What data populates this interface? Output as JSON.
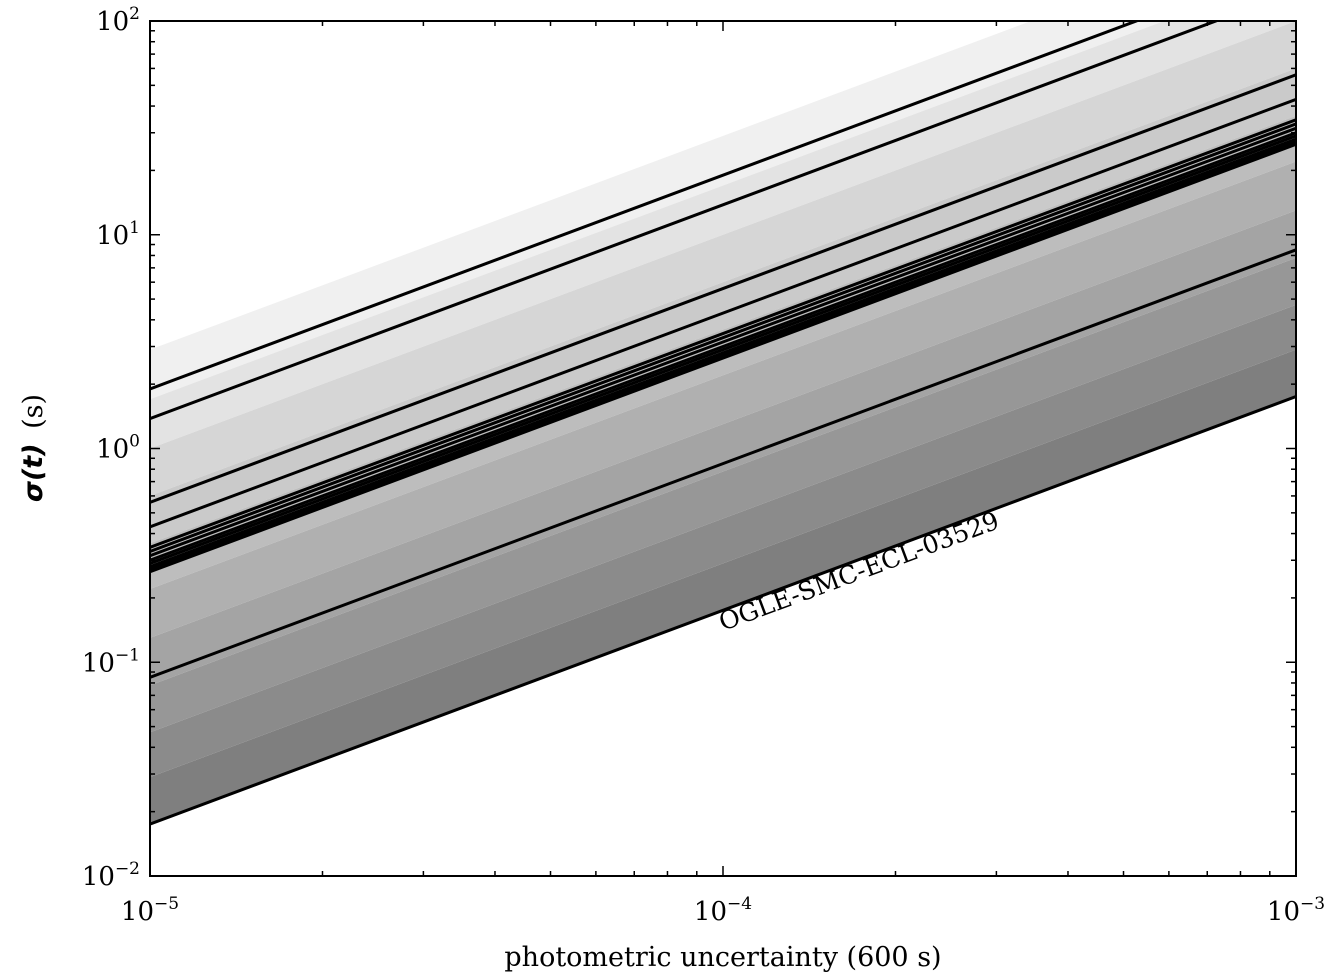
{
  "chart_data": {
    "type": "line",
    "xscale": "log",
    "yscale": "log",
    "xlim": [
      1e-05,
      0.001
    ],
    "ylim": [
      0.01,
      100
    ],
    "xlabel": "photometric uncertainty (600 s)",
    "ylabel_main": "σ(t)",
    "ylabel_unit": "(s)",
    "xticks": [
      {
        "value": 1e-05,
        "base": "10",
        "exp": "−5"
      },
      {
        "value": 0.0001,
        "base": "10",
        "exp": "−4"
      },
      {
        "value": 0.001,
        "base": "10",
        "exp": "−3"
      }
    ],
    "yticks": [
      {
        "value": 0.01,
        "base": "10",
        "exp": "−2"
      },
      {
        "value": 0.1,
        "base": "10",
        "exp": "−1"
      },
      {
        "value": 1,
        "base": "10",
        "exp": "0"
      },
      {
        "value": 10,
        "base": "10",
        "exp": "1"
      },
      {
        "value": 100,
        "base": "10",
        "exp": "2"
      }
    ],
    "bands": [
      {
        "lo_at_1e-5": 1.7,
        "hi_at_1e-5": 2.9,
        "color": "#f0f0f0"
      },
      {
        "lo_at_1e-5": 1.0,
        "hi_at_1e-5": 1.7,
        "color": "#e3e3e3"
      },
      {
        "lo_at_1e-5": 0.6,
        "hi_at_1e-5": 1.0,
        "color": "#d6d6d6"
      },
      {
        "lo_at_1e-5": 0.36,
        "hi_at_1e-5": 0.6,
        "color": "#cacaca"
      },
      {
        "lo_at_1e-5": 0.22,
        "hi_at_1e-5": 0.36,
        "color": "#bdbdbd"
      },
      {
        "lo_at_1e-5": 0.13,
        "hi_at_1e-5": 0.22,
        "color": "#b0b0b0"
      },
      {
        "lo_at_1e-5": 0.078,
        "hi_at_1e-5": 0.13,
        "color": "#a4a4a4"
      },
      {
        "lo_at_1e-5": 0.047,
        "hi_at_1e-5": 0.078,
        "color": "#979797"
      },
      {
        "lo_at_1e-5": 0.029,
        "hi_at_1e-5": 0.047,
        "color": "#8b8b8b"
      },
      {
        "lo_at_1e-5": 0.0175,
        "hi_at_1e-5": 0.029,
        "color": "#7f7f7f"
      }
    ],
    "lines": [
      {
        "x": [
          1e-05,
          0.001
        ],
        "y": [
          1.9,
          190
        ]
      },
      {
        "x": [
          1e-05,
          0.00021,
          0.001
        ],
        "y": [
          1.38,
          29,
          138
        ]
      },
      {
        "x": [
          1e-05,
          0.001
        ],
        "y": [
          0.56,
          56
        ]
      },
      {
        "x": [
          1e-05,
          0.001
        ],
        "y": [
          0.43,
          43
        ]
      },
      {
        "x": [
          1e-05,
          0.001
        ],
        "y": [
          0.345,
          34.5
        ]
      },
      {
        "x": [
          1e-05,
          0.001
        ],
        "y": [
          0.33,
          33
        ]
      },
      {
        "x": [
          1e-05,
          0.001
        ],
        "y": [
          0.315,
          31.5
        ]
      },
      {
        "x": [
          1e-05,
          0.001
        ],
        "y": [
          0.3,
          30
        ]
      },
      {
        "x": [
          1e-05,
          0.001
        ],
        "y": [
          0.29,
          29
        ]
      },
      {
        "x": [
          1e-05,
          0.001
        ],
        "y": [
          0.28,
          28
        ]
      },
      {
        "x": [
          1e-05,
          0.001
        ],
        "y": [
          0.272,
          27.2
        ]
      },
      {
        "x": [
          1e-05,
          0.001
        ],
        "y": [
          0.265,
          26.5
        ]
      },
      {
        "x": [
          1e-05,
          0.001
        ],
        "y": [
          0.085,
          8.5
        ]
      },
      {
        "x": [
          1e-05,
          0.001
        ],
        "y": [
          0.0175,
          1.75
        ]
      }
    ],
    "annotation": {
      "text": "OGLE-SMC-ECL-03529",
      "x": 0.0001,
      "y": 0.14
    }
  }
}
